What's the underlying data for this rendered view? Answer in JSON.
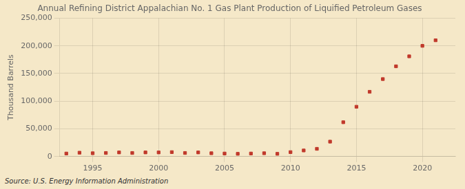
{
  "chart_data": {
    "type": "scatter",
    "title": "Annual Refining District Appalachian No. 1 Gas Plant Production of Liquified Petroleum Gases",
    "y_label": "Thousand Barrels",
    "annotations": [
      "Source: U.S. Energy Information Administration"
    ],
    "x": [
      1993,
      1994,
      1995,
      1996,
      1997,
      1998,
      1999,
      2000,
      2001,
      2002,
      2003,
      2004,
      2005,
      2006,
      2007,
      2008,
      2009,
      2010,
      2011,
      2012,
      2013,
      2014,
      2015,
      2016,
      2017,
      2018,
      2019,
      2020,
      2021
    ],
    "values": [
      5500,
      7000,
      6000,
      6500,
      7500,
      6500,
      7500,
      7500,
      8000,
      6500,
      7500,
      6000,
      5500,
      5000,
      5500,
      6000,
      5000,
      8000,
      11000,
      14000,
      27000,
      62000,
      90000,
      117000,
      140000,
      163000,
      181000,
      200000,
      210000
    ],
    "color": "#c0392b",
    "marker": "square",
    "xlim": [
      1992.5,
      2022.5
    ],
    "xticks": [
      1995,
      2000,
      2005,
      2010,
      2015,
      2020
    ],
    "ylim": [
      0,
      250000
    ],
    "yticks": [
      0,
      {
        "value": 50000,
        "label": "50,000"
      },
      {
        "value": 100000,
        "label": "100,000"
      },
      {
        "value": 150000,
        "label": "150,000"
      },
      {
        "value": 200000,
        "label": "200,000"
      },
      {
        "value": 250000,
        "label": "250,000"
      }
    ],
    "grid": true
  }
}
